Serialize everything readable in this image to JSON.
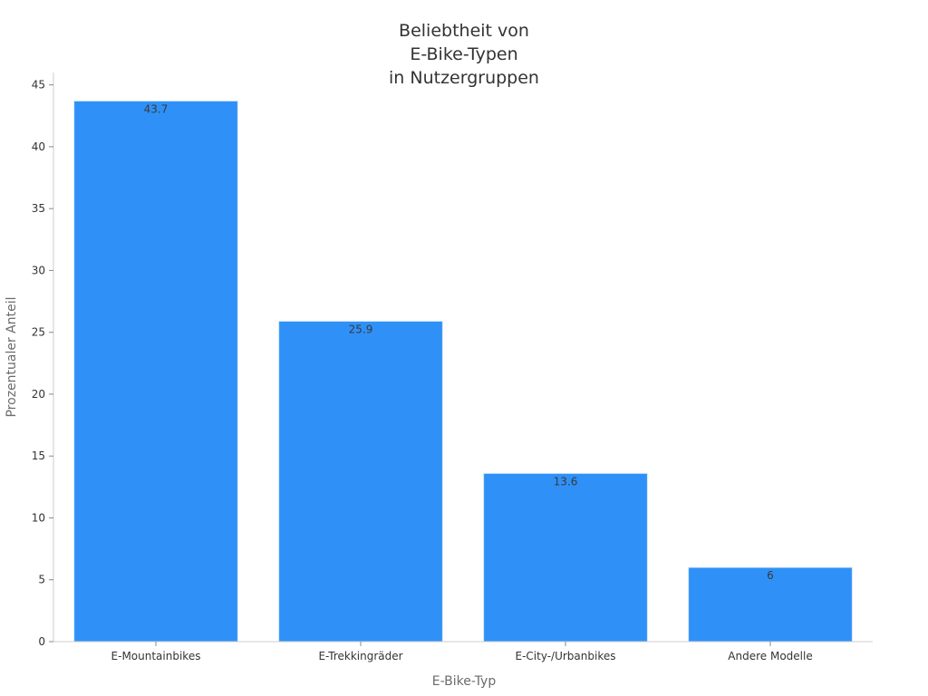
{
  "chart_data": {
    "type": "bar",
    "title_lines": [
      "Beliebtheit von",
      "E-Bike-Typen",
      "in Nutzergruppen"
    ],
    "xlabel": "E-Bike-Typ",
    "ylabel": "Prozentualer Anteil",
    "categories": [
      "E-Mountainbikes",
      "E-Trekkingräder",
      "E-City-/Urbanbikes",
      "Andere Modelle"
    ],
    "values": [
      43.7,
      25.9,
      13.6,
      6
    ],
    "data_labels": [
      "43.7",
      "25.9",
      "13.6",
      "6"
    ],
    "y_ticks": [
      0,
      5,
      10,
      15,
      20,
      25,
      30,
      35,
      40,
      45
    ],
    "ylim": [
      0,
      46
    ],
    "grid": false,
    "legend": "none",
    "bar_color": "#2f91f7"
  }
}
